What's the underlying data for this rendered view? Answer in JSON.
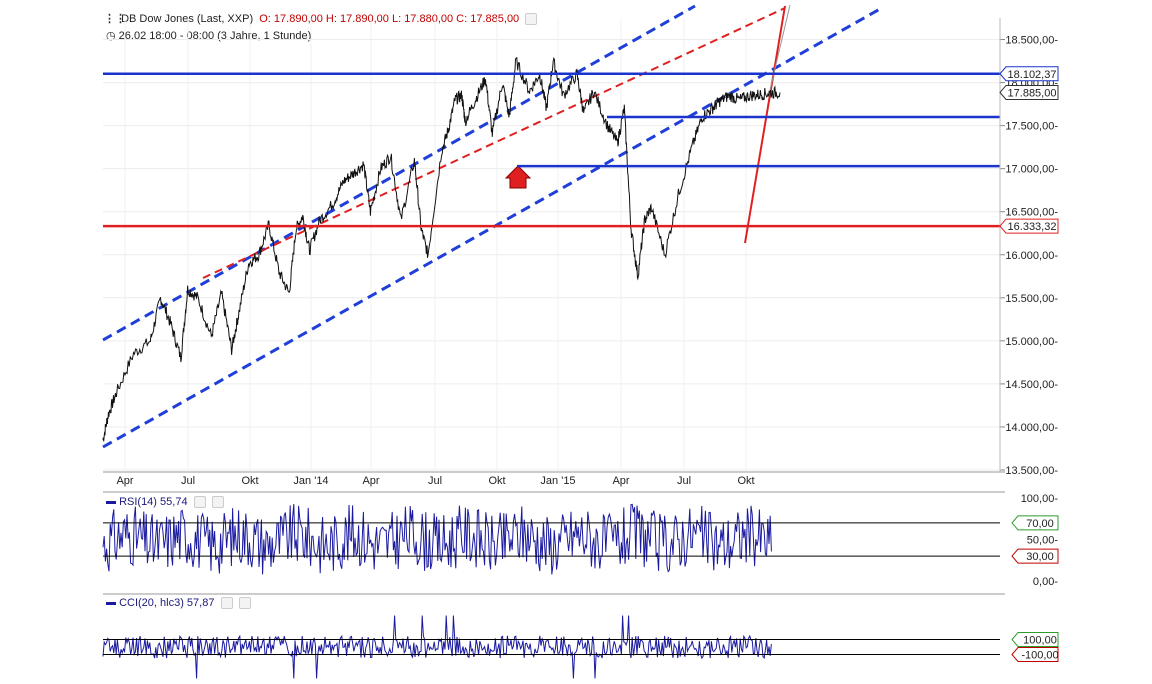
{
  "header": {
    "title": "DB Dow Jones (Last, XXP)",
    "ohlc": "O: 17.890,00  H: 17.890,00  L: 17.880,00  C: 17.885,00",
    "period": "26.02 18:00 - 08:00 (3 Jahre, 1 Stunde)"
  },
  "colors": {
    "price_line": "#111111",
    "channel": "#1f3fd8",
    "support_blue": "#1a33cc",
    "support_red": "#e02020",
    "indicator": "#1a1aa0",
    "rsi_upper": "#2a9d2a",
    "rsi_lower": "#c00000"
  },
  "chart_data": [
    {
      "type": "line",
      "title": "DB Dow Jones (Last, XXP)",
      "x_ticks": [
        "Apr",
        "Jul",
        "Okt",
        "Jan '14",
        "Apr",
        "Jul",
        "Okt",
        "Jan '15",
        "Apr",
        "Jul",
        "Okt"
      ],
      "y_ticks": [
        "18.500,00",
        "18.000,00",
        "17.500,00",
        "17.000,00",
        "16.500,00",
        "16.000,00",
        "15.500,00",
        "15.000,00",
        "14.500,00",
        "14.000,00",
        "13.500,00"
      ],
      "ylim": [
        13500,
        18750
      ],
      "xlim": [
        0,
        1
      ],
      "series": [
        {
          "x": [
            0.0,
            0.008,
            0.02,
            0.045,
            0.07,
            0.085,
            0.1,
            0.115,
            0.125,
            0.14,
            0.16,
            0.175,
            0.19,
            0.2,
            0.215,
            0.23,
            0.245,
            0.26,
            0.275,
            0.285,
            0.295,
            0.305,
            0.32,
            0.34,
            0.355,
            0.37,
            0.385,
            0.395,
            0.41,
            0.425,
            0.44,
            0.46,
            0.47,
            0.48,
            0.5,
            0.51,
            0.52,
            0.53,
            0.535,
            0.55,
            0.565,
            0.575,
            0.59,
            0.6,
            0.61,
            0.63,
            0.645,
            0.655,
            0.665,
            0.68,
            0.7,
            0.71,
            0.725,
            0.745,
            0.76,
            0.77,
            0.78,
            0.79,
            0.8,
            0.81,
            0.83,
            0.85,
            0.87,
            0.885,
            0.9,
            0.91,
            0.925,
            0.94,
            0.955,
            0.97,
            0.985,
            1.0
          ],
          "values": [
            13850,
            14150,
            14400,
            14850,
            15000,
            15500,
            15200,
            14800,
            15600,
            15500,
            15050,
            15550,
            14900,
            15300,
            15900,
            16000,
            16350,
            15800,
            15550,
            16300,
            16450,
            16050,
            16400,
            16600,
            16850,
            16950,
            17050,
            16500,
            17000,
            17150,
            16400,
            17100,
            16300,
            16000,
            17200,
            17450,
            17800,
            17850,
            17550,
            17800,
            18050,
            17400,
            18000,
            17600,
            18250,
            17900,
            18100,
            17700,
            18250,
            17850,
            18100,
            17650,
            17900,
            17500,
            17300,
            17700,
            16300,
            15750,
            16400,
            16550,
            16000,
            16700,
            17250,
            17600,
            17700,
            17780,
            17850,
            17800,
            17850,
            17860,
            17880,
            17885
          ]
        }
      ],
      "horizontal_lines": [
        {
          "value": 18102.37,
          "label": "18.102,37",
          "color": "#1a33cc"
        },
        {
          "value": 17600,
          "label": "",
          "color": "#1a33cc"
        },
        {
          "value": 17030,
          "label": "",
          "color": "#1a33cc"
        },
        {
          "value": 16333.32,
          "label": "16.333,32",
          "color": "#e02020"
        }
      ],
      "last_price_label": "17.885,00"
    },
    {
      "type": "line",
      "title": "RSI(14)",
      "value_label": "55,74",
      "y_ticks": [
        "100,00",
        "70,00",
        "50,00",
        "30,00",
        "0,00"
      ],
      "ylim": [
        0,
        100
      ],
      "levels": [
        70,
        30
      ]
    },
    {
      "type": "line",
      "title": "CCI(20, hlc3)",
      "value_label": "57,87",
      "y_ticks": [
        "100,00",
        "-100,00"
      ],
      "levels": [
        100,
        -100
      ]
    }
  ]
}
